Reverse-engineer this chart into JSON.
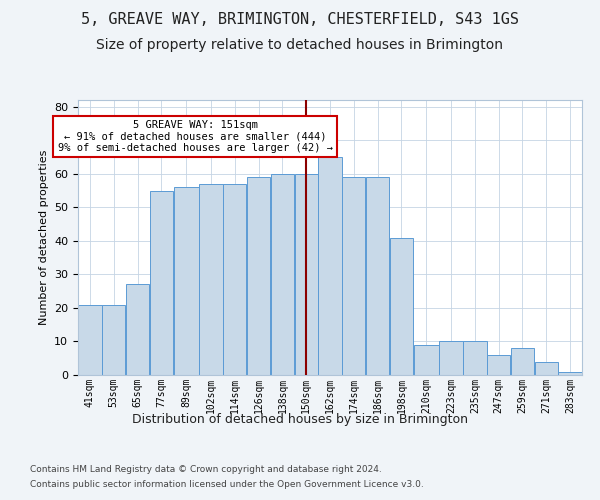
{
  "title": "5, GREAVE WAY, BRIMINGTON, CHESTERFIELD, S43 1GS",
  "subtitle": "Size of property relative to detached houses in Brimington",
  "xlabel": "Distribution of detached houses by size in Brimington",
  "ylabel": "Number of detached properties",
  "categories": [
    "41sqm",
    "53sqm",
    "65sqm",
    "77sqm",
    "89sqm",
    "102sqm",
    "114sqm",
    "126sqm",
    "138sqm",
    "150sqm",
    "162sqm",
    "174sqm",
    "186sqm",
    "198sqm",
    "210sqm",
    "223sqm",
    "235sqm",
    "247sqm",
    "259sqm",
    "271sqm",
    "283sqm"
  ],
  "bar_heights": [
    21,
    21,
    27,
    55,
    56,
    57,
    57,
    59,
    60,
    60,
    65,
    59,
    59,
    41,
    9,
    10,
    10,
    6,
    8,
    4,
    1
  ],
  "bar_color": "#c8d9e8",
  "bar_edge_color": "#5b9bd5",
  "vline_color": "#8b0000",
  "annotation_text": "5 GREAVE WAY: 151sqm\n← 91% of detached houses are smaller (444)\n9% of semi-detached houses are larger (42) →",
  "annotation_box_color": "#ffffff",
  "annotation_box_edge": "#cc0000",
  "ylim": [
    0,
    82
  ],
  "yticks": [
    0,
    10,
    20,
    30,
    40,
    50,
    60,
    70,
    80
  ],
  "footer1": "Contains HM Land Registry data © Crown copyright and database right 2024.",
  "footer2": "Contains public sector information licensed under the Open Government Licence v3.0.",
  "background_color": "#f0f4f8",
  "plot_background": "#ffffff",
  "title_fontsize": 11,
  "subtitle_fontsize": 10,
  "bar_bins": [
    41,
    53,
    65,
    77,
    89,
    102,
    114,
    126,
    138,
    150,
    162,
    174,
    186,
    198,
    210,
    223,
    235,
    247,
    259,
    271,
    283,
    295
  ]
}
